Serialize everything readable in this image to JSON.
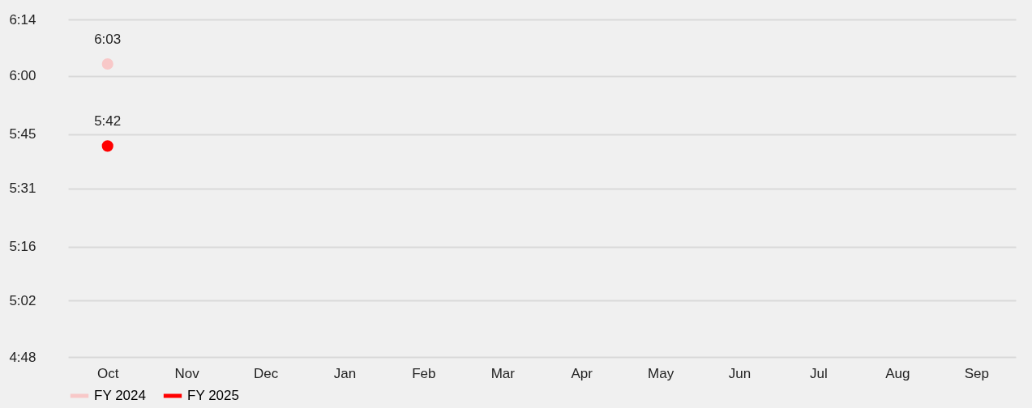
{
  "chart_data": {
    "type": "line",
    "categories": [
      "Oct",
      "Nov",
      "Dec",
      "Jan",
      "Feb",
      "Mar",
      "Apr",
      "May",
      "Jun",
      "Jul",
      "Aug",
      "Sep"
    ],
    "series": [
      {
        "name": "FY 2024",
        "color": "#f8c8c8",
        "values": [
          6.05,
          null,
          null,
          null,
          null,
          null,
          null,
          null,
          null,
          null,
          null,
          null
        ],
        "value_labels": [
          "6:03",
          null,
          null,
          null,
          null,
          null,
          null,
          null,
          null,
          null,
          null,
          null
        ]
      },
      {
        "name": "FY 2025",
        "color": "#ff0000",
        "values": [
          5.7,
          null,
          null,
          null,
          null,
          null,
          null,
          null,
          null,
          null,
          null,
          null
        ],
        "value_labels": [
          "5:42",
          null,
          null,
          null,
          null,
          null,
          null,
          null,
          null,
          null,
          null,
          null
        ]
      }
    ],
    "ylim": [
      4.8,
      6.24
    ],
    "yticks": [
      {
        "value": 4.8,
        "label": "4:48"
      },
      {
        "value": 5.04,
        "label": "5:02"
      },
      {
        "value": 5.27,
        "label": "5:16"
      },
      {
        "value": 5.52,
        "label": "5:31"
      },
      {
        "value": 5.75,
        "label": "5:45"
      },
      {
        "value": 6.0,
        "label": "6:00"
      },
      {
        "value": 6.24,
        "label": "6:14"
      }
    ],
    "grid": "y",
    "legend": "bottom",
    "marker": "circle"
  }
}
